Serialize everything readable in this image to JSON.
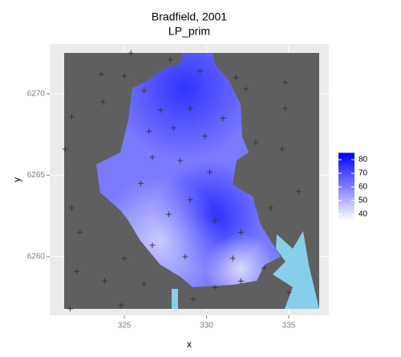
{
  "chart_data": {
    "type": "raster-map",
    "title": "Bradfield, 2001",
    "subtitle": "LP_prim",
    "x_label": "x",
    "y_label": "y",
    "xlim": [
      320.46,
      337.44
    ],
    "xticks": [
      325,
      330,
      335
    ],
    "ylim": [
      6256.4,
      6273.05
    ],
    "yticks": [
      6260,
      6265,
      6270
    ],
    "grid": true,
    "points": {
      "x": [
        325.4,
        325.0,
        323.6,
        326.2,
        327.8,
        329.6,
        331.8,
        334.8,
        332.4,
        323.7,
        327.2,
        329.0,
        331.0,
        334.8,
        321.8,
        326.5,
        328.0,
        329.9,
        333.0,
        334.6,
        321.4,
        326.7,
        328.4,
        330.2,
        326.0,
        329.0,
        335.6,
        333.9,
        321.8,
        322.3,
        327.7,
        330.5,
        332.1,
        325.0,
        326.7,
        328.7,
        331.6,
        333.5,
        322.1,
        323.8,
        326.2,
        330.5,
        332.1,
        329.2,
        324.8,
        335.0,
        321.7
      ],
      "y": [
        6272.5,
        6271.1,
        6271.2,
        6270.2,
        6272.1,
        6271.4,
        6271.0,
        6270.7,
        6270.3,
        6269.5,
        6269.0,
        6269.1,
        6268.5,
        6269.1,
        6268.6,
        6267.7,
        6267.9,
        6267.4,
        6267.0,
        6266.6,
        6266.6,
        6266.1,
        6265.9,
        6265.2,
        6264.5,
        6263.5,
        6264.0,
        6263.0,
        6263.0,
        6261.5,
        6262.6,
        6262.2,
        6261.5,
        6259.9,
        6260.7,
        6260.0,
        6259.9,
        6259.3,
        6259.1,
        6258.5,
        6258.3,
        6258.1,
        6258.5,
        6257.4,
        6257.0,
        6257.8,
        6256.8
      ],
      "color": "#333333"
    },
    "color_scale": {
      "low": "#ffffff",
      "high": "#0000ff",
      "lim": [
        35,
        85
      ],
      "ticks": [
        40,
        50,
        60,
        70,
        80
      ]
    }
  }
}
